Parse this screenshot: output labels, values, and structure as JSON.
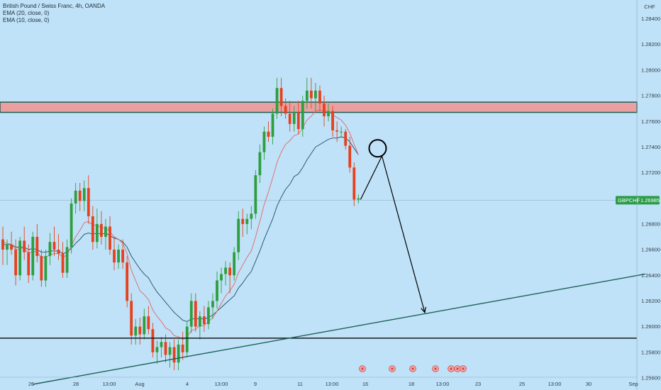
{
  "legend": {
    "symbol_line": "British Pound / Swiss Franc, 4h, OANDA",
    "ema20_line": "EMA (20, close, 0)",
    "ema10_line": "EMA (10, close, 0)"
  },
  "chart_data": {
    "type": "candlestick",
    "price_axis": {
      "currency": "CHF",
      "ticks": [
        {
          "label": "1.28400",
          "value": 1.284
        },
        {
          "label": "1.28200",
          "value": 1.282
        },
        {
          "label": "1.28000",
          "value": 1.28
        },
        {
          "label": "1.27800",
          "value": 1.278
        },
        {
          "label": "1.27600",
          "value": 1.276
        },
        {
          "label": "1.27400",
          "value": 1.274
        },
        {
          "label": "1.27200",
          "value": 1.272
        },
        {
          "label": "1.26800",
          "value": 1.268
        },
        {
          "label": "1.26600",
          "value": 1.266
        },
        {
          "label": "1.26400",
          "value": 1.264
        },
        {
          "label": "1.26200",
          "value": 1.262
        },
        {
          "label": "1.26000",
          "value": 1.26
        },
        {
          "label": "1.25800",
          "value": 1.258
        },
        {
          "label": "1.25600",
          "value": 1.256
        }
      ],
      "range": [
        1.2555,
        1.2848
      ]
    },
    "time_axis": {
      "ticks": [
        "26",
        "28",
        "13:00",
        "Aug",
        "4",
        "13:00",
        "9",
        "11",
        "13:00",
        "16",
        "18",
        "13:00",
        "23",
        "25",
        "13:00",
        "30",
        "Sep"
      ]
    },
    "last_price": {
      "symbol": "GBPCHF",
      "label": "1.26985",
      "value": 1.26985
    },
    "resistance_zone": {
      "from": 1.2767,
      "to": 1.2775
    },
    "support_level": 1.2591,
    "trendline": {
      "from": {
        "candle": 7,
        "price": 1.2555
      },
      "to": {
        "candle": 150,
        "price": 1.2641
      }
    },
    "projection": {
      "circle_center": {
        "candle": 87.5,
        "price": 1.2739
      },
      "points": [
        {
          "candle": 83.5,
          "price": 1.2699
        },
        {
          "candle": 88.5,
          "price": 1.2733
        },
        {
          "candle": 98.5,
          "price": 1.2611
        }
      ]
    },
    "candles_ohlc": [
      [
        1.2668,
        1.2678,
        1.2648,
        1.266
      ],
      [
        1.266,
        1.2668,
        1.2648,
        1.2664
      ],
      [
        1.2664,
        1.2674,
        1.2656,
        1.266
      ],
      [
        1.266,
        1.2668,
        1.2632,
        1.264
      ],
      [
        1.264,
        1.267,
        1.2636,
        1.2667
      ],
      [
        1.2667,
        1.2678,
        1.2652,
        1.2658
      ],
      [
        1.2658,
        1.2664,
        1.2634,
        1.264
      ],
      [
        1.264,
        1.2674,
        1.2636,
        1.267
      ],
      [
        1.267,
        1.268,
        1.265,
        1.2655
      ],
      [
        1.2655,
        1.266,
        1.2631,
        1.2636
      ],
      [
        1.2636,
        1.266,
        1.2631,
        1.2655
      ],
      [
        1.2655,
        1.2673,
        1.2648,
        1.2666
      ],
      [
        1.2666,
        1.2678,
        1.2655,
        1.266
      ],
      [
        1.266,
        1.2672,
        1.2652,
        1.2657
      ],
      [
        1.2657,
        1.2666,
        1.2638,
        1.2642
      ],
      [
        1.2642,
        1.2668,
        1.2638,
        1.2662
      ],
      [
        1.2662,
        1.27,
        1.2657,
        1.2696
      ],
      [
        1.2696,
        1.2712,
        1.2688,
        1.2706
      ],
      [
        1.2706,
        1.2712,
        1.269,
        1.2698
      ],
      [
        1.2698,
        1.2714,
        1.269,
        1.2708
      ],
      [
        1.2708,
        1.2718,
        1.268,
        1.2686
      ],
      [
        1.2686,
        1.2694,
        1.266,
        1.2666
      ],
      [
        1.2666,
        1.2692,
        1.2661,
        1.268
      ],
      [
        1.268,
        1.269,
        1.2664,
        1.267
      ],
      [
        1.267,
        1.2684,
        1.266,
        1.2678
      ],
      [
        1.2678,
        1.2686,
        1.2656,
        1.266
      ],
      [
        1.266,
        1.267,
        1.2644,
        1.265
      ],
      [
        1.265,
        1.2664,
        1.2645,
        1.266
      ],
      [
        1.266,
        1.2668,
        1.2645,
        1.265
      ],
      [
        1.265,
        1.2655,
        1.2615,
        1.262
      ],
      [
        1.262,
        1.2626,
        1.2586,
        1.2593
      ],
      [
        1.2593,
        1.2606,
        1.2586,
        1.26
      ],
      [
        1.26,
        1.2607,
        1.2586,
        1.2594
      ],
      [
        1.2594,
        1.2614,
        1.259,
        1.2608
      ],
      [
        1.2608,
        1.2616,
        1.2594,
        1.2598
      ],
      [
        1.2598,
        1.2603,
        1.2576,
        1.258
      ],
      [
        1.258,
        1.2589,
        1.2571,
        1.2584
      ],
      [
        1.2584,
        1.2592,
        1.2576,
        1.2588
      ],
      [
        1.2588,
        1.2594,
        1.2572,
        1.2578
      ],
      [
        1.2578,
        1.2588,
        1.2568,
        1.2584
      ],
      [
        1.2584,
        1.259,
        1.2566,
        1.2572
      ],
      [
        1.2572,
        1.259,
        1.2566,
        1.2586
      ],
      [
        1.2586,
        1.2596,
        1.2574,
        1.258
      ],
      [
        1.258,
        1.2604,
        1.2576,
        1.26
      ],
      [
        1.26,
        1.2626,
        1.2595,
        1.262
      ],
      [
        1.262,
        1.2626,
        1.2596,
        1.26
      ],
      [
        1.26,
        1.2612,
        1.259,
        1.2608
      ],
      [
        1.2608,
        1.2616,
        1.2596,
        1.2602
      ],
      [
        1.2602,
        1.262,
        1.2598,
        1.2615
      ],
      [
        1.2615,
        1.2626,
        1.2606,
        1.262
      ],
      [
        1.262,
        1.2643,
        1.2614,
        1.2636
      ],
      [
        1.2636,
        1.2646,
        1.2626,
        1.2641
      ],
      [
        1.2641,
        1.2651,
        1.2632,
        1.2646
      ],
      [
        1.2646,
        1.265,
        1.2626,
        1.264
      ],
      [
        1.264,
        1.2662,
        1.2636,
        1.2658
      ],
      [
        1.2658,
        1.269,
        1.2652,
        1.2684
      ],
      [
        1.2684,
        1.2692,
        1.267,
        1.268
      ],
      [
        1.268,
        1.2688,
        1.2672,
        1.2684
      ],
      [
        1.2684,
        1.2694,
        1.2676,
        1.2688
      ],
      [
        1.2688,
        1.2722,
        1.2684,
        1.2718
      ],
      [
        1.2718,
        1.2742,
        1.2712,
        1.2736
      ],
      [
        1.2736,
        1.2756,
        1.273,
        1.2752
      ],
      [
        1.2752,
        1.276,
        1.2744,
        1.2748
      ],
      [
        1.2748,
        1.277,
        1.2742,
        1.2766
      ],
      [
        1.2766,
        1.2794,
        1.2762,
        1.2786
      ],
      [
        1.2786,
        1.2794,
        1.2764,
        1.2772
      ],
      [
        1.2772,
        1.2778,
        1.2762,
        1.2766
      ],
      [
        1.2766,
        1.2776,
        1.2752,
        1.2758
      ],
      [
        1.2758,
        1.2772,
        1.2752,
        1.2767
      ],
      [
        1.2767,
        1.2776,
        1.275,
        1.2754
      ],
      [
        1.2754,
        1.278,
        1.2748,
        1.2776
      ],
      [
        1.2776,
        1.2794,
        1.277,
        1.2784
      ],
      [
        1.2784,
        1.2794,
        1.277,
        1.2778
      ],
      [
        1.2778,
        1.279,
        1.2768,
        1.2784
      ],
      [
        1.2784,
        1.2788,
        1.2768,
        1.2774
      ],
      [
        1.2774,
        1.278,
        1.2756,
        1.2764
      ],
      [
        1.2764,
        1.2774,
        1.276,
        1.2768
      ],
      [
        1.2768,
        1.2772,
        1.2748,
        1.2753
      ],
      [
        1.2753,
        1.276,
        1.2744,
        1.2752
      ],
      [
        1.2752,
        1.2756,
        1.2748,
        1.2752
      ],
      [
        1.2752,
        1.2754,
        1.2738,
        1.2741
      ],
      [
        1.2741,
        1.2748,
        1.272,
        1.2724
      ],
      [
        1.2724,
        1.2728,
        1.2694,
        1.2699
      ],
      [
        1.2699,
        1.2703,
        1.2696,
        1.27
      ]
    ],
    "ema10": [
      1.2666,
      1.2665,
      1.2664,
      1.266,
      1.2661,
      1.2661,
      1.2657,
      1.2659,
      1.2658,
      1.2654,
      1.2654,
      1.2656,
      1.2657,
      1.2657,
      1.2654,
      1.2656,
      1.2663,
      1.267,
      1.2675,
      1.2681,
      1.2682,
      1.2679,
      1.2679,
      1.2677,
      1.2677,
      1.2674,
      1.267,
      1.2668,
      1.2665,
      1.2657,
      1.2644,
      1.2636,
      1.2628,
      1.2625,
      1.2621,
      1.2613,
      1.2608,
      1.2604,
      1.2599,
      1.2597,
      1.2593,
      1.2592,
      1.259,
      1.2592,
      1.2597,
      1.2598,
      1.2601,
      1.2601,
      1.2604,
      1.2607,
      1.2612,
      1.2618,
      1.2624,
      1.2628,
      1.2633,
      1.2642,
      1.2648,
      1.2654,
      1.2659,
      1.267,
      1.2682,
      1.2695,
      1.2705,
      1.2716,
      1.2728,
      1.2736,
      1.2742,
      1.2745,
      1.2749,
      1.275,
      1.2755,
      1.2761,
      1.2764,
      1.2768,
      1.2769,
      1.2768,
      1.2768,
      1.2765,
      1.2763,
      1.2761,
      1.2757,
      1.2751,
      1.2742,
      1.2734
    ],
    "ema20": [
      1.2664,
      1.2664,
      1.2664,
      1.2662,
      1.2662,
      1.2662,
      1.266,
      1.2661,
      1.266,
      1.2658,
      1.2658,
      1.2659,
      1.2659,
      1.2659,
      1.2657,
      1.2658,
      1.2661,
      1.2665,
      1.2668,
      1.2672,
      1.2673,
      1.2672,
      1.2673,
      1.2672,
      1.2673,
      1.2671,
      1.2669,
      1.2668,
      1.2666,
      1.2662,
      1.2655,
      1.265,
      1.2645,
      1.2641,
      1.2638,
      1.2632,
      1.2627,
      1.2623,
      1.2619,
      1.2615,
      1.2611,
      1.2608,
      1.2605,
      1.2604,
      1.2606,
      1.2606,
      1.2606,
      1.2606,
      1.2607,
      1.2609,
      1.2612,
      1.2615,
      1.2618,
      1.2621,
      1.2624,
      1.263,
      1.2634,
      1.2639,
      1.2643,
      1.2651,
      1.2659,
      1.2668,
      1.2676,
      1.2684,
      1.2694,
      1.2701,
      1.2707,
      1.2711,
      1.2717,
      1.2719,
      1.2724,
      1.273,
      1.2735,
      1.274,
      1.2742,
      1.2744,
      1.2746,
      1.2747,
      1.2747,
      1.2748,
      1.2747,
      1.2744,
      1.2739,
      1.2734
    ]
  },
  "colors": {
    "background": "#bfe2f8",
    "bull": "#2e9e3e",
    "bear": "#e8401c",
    "ema10": "#e66666",
    "ema20": "#1f4f63",
    "zone_fill": "#eaa0a0",
    "zone_border": "#1d5f55",
    "trendline": "#1d5f55",
    "support": "#1a1a1a",
    "price_tag": "#2b9c49",
    "projection": "#000000"
  }
}
